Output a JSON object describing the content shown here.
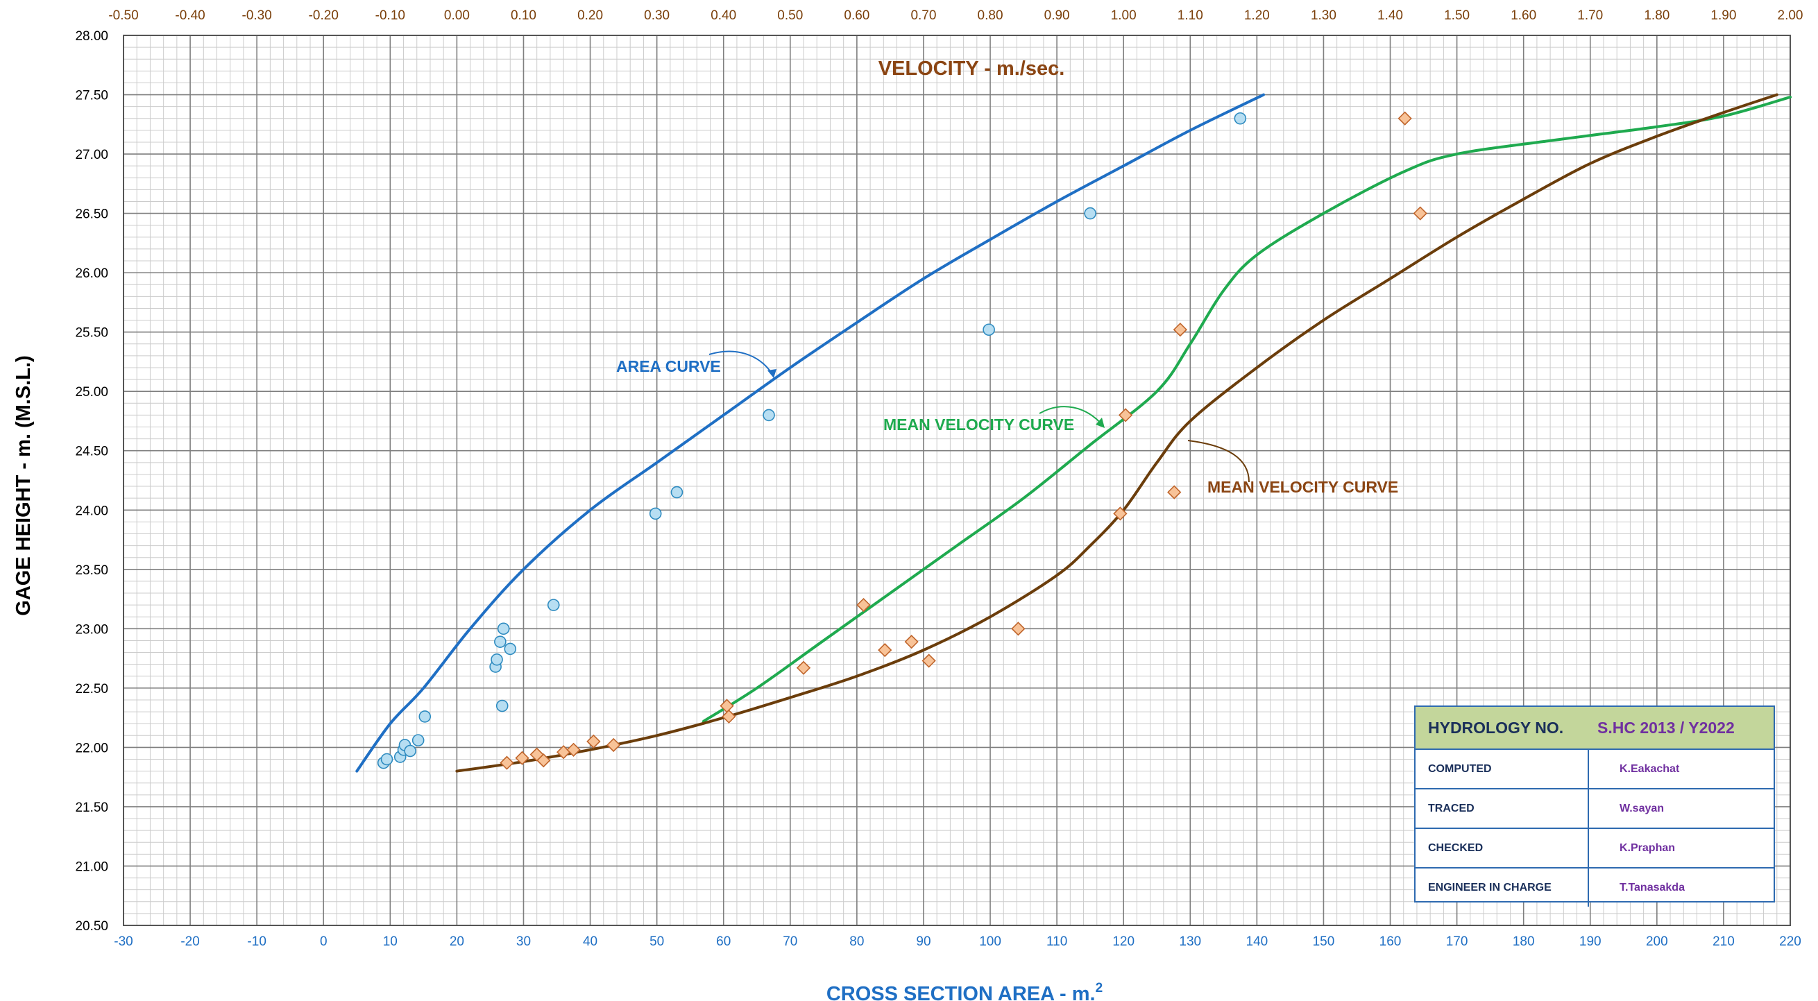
{
  "chart_data": {
    "type": "scatter",
    "title": "",
    "x_axis_bottom": {
      "label": "CROSS  SECTION  AREA  -  m.",
      "label_superscript": "2",
      "range": [
        -30,
        220
      ],
      "ticks": [
        "-30",
        "-20",
        "-10",
        "0",
        "10",
        "20",
        "30",
        "40",
        "50",
        "60",
        "70",
        "80",
        "90",
        "100",
        "110",
        "120",
        "130",
        "140",
        "150",
        "160",
        "170",
        "180",
        "190",
        "200",
        "210",
        "220"
      ]
    },
    "x_axis_top": {
      "label": "VELOCITY  -  m./sec.",
      "range": [
        -0.5,
        2.0
      ],
      "ticks": [
        "-0.50",
        "-0.40",
        "-0.30",
        "-0.20",
        "-0.10",
        "0.00",
        "0.10",
        "0.20",
        "0.30",
        "0.40",
        "0.50",
        "0.60",
        "0.70",
        "0.80",
        "0.90",
        "1.00",
        "1.10",
        "1.20",
        "1.30",
        "1.40",
        "1.50",
        "1.60",
        "1.70",
        "1.80",
        "1.90",
        "2.00"
      ]
    },
    "y_axis": {
      "label": "GAGE  HEIGHT  -  m. (M.S.L.)",
      "range": [
        20.5,
        28.0
      ],
      "ticks": [
        "20.50",
        "21.00",
        "21.50",
        "22.00",
        "22.50",
        "23.00",
        "23.50",
        "24.00",
        "24.50",
        "25.00",
        "25.50",
        "26.00",
        "26.50",
        "27.00",
        "27.50",
        "28.00"
      ]
    },
    "grid": true,
    "series": [
      {
        "name": "AREA  CURVE",
        "kind": "curve",
        "axis": "bottom",
        "color": "#1f6fc4",
        "points": [
          [
            5,
            21.8
          ],
          [
            10,
            22.2
          ],
          [
            15,
            22.5
          ],
          [
            22,
            23.0
          ],
          [
            30,
            23.5
          ],
          [
            40,
            24.0
          ],
          [
            50,
            24.4
          ],
          [
            60,
            24.8
          ],
          [
            70,
            25.2
          ],
          [
            80,
            25.58
          ],
          [
            90,
            25.95
          ],
          [
            100,
            26.28
          ],
          [
            110,
            26.6
          ],
          [
            120,
            26.9
          ],
          [
            130,
            27.2
          ],
          [
            141,
            27.5
          ]
        ]
      },
      {
        "name": "area-observations",
        "kind": "points",
        "marker": "circle",
        "axis": "bottom",
        "color": "#2e8bc0",
        "fill": "#b7def2",
        "points": [
          [
            9,
            21.87
          ],
          [
            9.5,
            21.9
          ],
          [
            11.5,
            21.92
          ],
          [
            12,
            21.98
          ],
          [
            12.2,
            22.02
          ],
          [
            13,
            21.97
          ],
          [
            14.2,
            22.06
          ],
          [
            15.2,
            22.26
          ],
          [
            25.8,
            22.68
          ],
          [
            26,
            22.74
          ],
          [
            26.5,
            22.89
          ],
          [
            26.8,
            22.35
          ],
          [
            27,
            23.0
          ],
          [
            28,
            22.83
          ],
          [
            34.5,
            23.2
          ],
          [
            49.8,
            23.97
          ],
          [
            53,
            24.15
          ],
          [
            66.8,
            24.8
          ],
          [
            99.8,
            25.52
          ],
          [
            115,
            26.5
          ],
          [
            137.5,
            27.3
          ]
        ]
      },
      {
        "name": "MEAN  VELOCITY  CURVE",
        "kind": "curve",
        "axis": "top",
        "color": "#1faa4f",
        "points": [
          [
            0.37,
            22.22
          ],
          [
            0.45,
            22.5
          ],
          [
            0.55,
            22.9
          ],
          [
            0.65,
            23.3
          ],
          [
            0.75,
            23.7
          ],
          [
            0.85,
            24.1
          ],
          [
            0.95,
            24.55
          ],
          [
            1.05,
            25.0
          ],
          [
            1.1,
            25.4
          ],
          [
            1.15,
            25.85
          ],
          [
            1.2,
            26.15
          ],
          [
            1.3,
            26.5
          ],
          [
            1.42,
            26.85
          ],
          [
            1.5,
            27.0
          ],
          [
            1.65,
            27.12
          ],
          [
            1.8,
            27.23
          ],
          [
            1.9,
            27.32
          ],
          [
            2.0,
            27.48
          ]
        ]
      },
      {
        "name": "MEAN  VELOCITY  CURVE",
        "kind": "curve",
        "axis": "bottom",
        "color": "#6b3d0b",
        "points": [
          [
            20,
            21.8
          ],
          [
            30,
            21.88
          ],
          [
            40,
            21.98
          ],
          [
            50,
            22.1
          ],
          [
            60,
            22.25
          ],
          [
            70,
            22.42
          ],
          [
            80,
            22.6
          ],
          [
            90,
            22.82
          ],
          [
            100,
            23.1
          ],
          [
            110,
            23.45
          ],
          [
            115,
            23.7
          ],
          [
            120,
            24.0
          ],
          [
            125,
            24.4
          ],
          [
            130,
            24.75
          ],
          [
            140,
            25.2
          ],
          [
            150,
            25.6
          ],
          [
            160,
            25.95
          ],
          [
            170,
            26.3
          ],
          [
            180,
            26.62
          ],
          [
            190,
            26.92
          ],
          [
            200,
            27.15
          ],
          [
            210,
            27.35
          ],
          [
            218,
            27.5
          ]
        ]
      },
      {
        "name": "velocity-observations",
        "kind": "points",
        "marker": "diamond",
        "axis": "bottom",
        "color": "#c0652b",
        "fill": "#f8c398",
        "points": [
          [
            27.5,
            21.87
          ],
          [
            29.8,
            21.91
          ],
          [
            32,
            21.94
          ],
          [
            33,
            21.89
          ],
          [
            36,
            21.96
          ],
          [
            37.5,
            21.98
          ],
          [
            40.5,
            22.05
          ],
          [
            43.5,
            22.02
          ],
          [
            60.5,
            22.35
          ],
          [
            60.8,
            22.26
          ],
          [
            72,
            22.67
          ],
          [
            81,
            23.2
          ],
          [
            84.2,
            22.82
          ],
          [
            88.2,
            22.89
          ],
          [
            90.8,
            22.73
          ],
          [
            104.2,
            23.0
          ],
          [
            119.5,
            23.97
          ],
          [
            120.3,
            24.8
          ],
          [
            127.6,
            24.15
          ],
          [
            128.5,
            25.52
          ],
          [
            162.2,
            27.3
          ],
          [
            164.5,
            26.5
          ]
        ]
      }
    ],
    "annotations": [
      {
        "text": "AREA  CURVE",
        "color": "#1f6fc4"
      },
      {
        "text": "MEAN  VELOCITY  CURVE",
        "color": "#1faa4f"
      },
      {
        "text": "MEAN  VELOCITY  CURVE",
        "color": "#8b4513"
      }
    ]
  },
  "info_box": {
    "header_label": "HYDROLOGY  NO.",
    "header_value": "S.HC 2013 / Y2022",
    "rows": [
      {
        "label": "COMPUTED",
        "value": "K.Eakachat"
      },
      {
        "label": "TRACED",
        "value": "W.sayan"
      },
      {
        "label": "CHECKED",
        "value": "K.Praphan"
      },
      {
        "label": "ENGINEER IN CHARGE",
        "value": "T.Tanasakda"
      }
    ]
  },
  "colors": {
    "grid_major": "#7f7f7f",
    "grid_minor": "#cccccc",
    "axis_bottom": "#1f6fc4",
    "axis_top": "#8b4513",
    "box_border": "#2e6ab0",
    "box_header_bg": "#c3d69b"
  }
}
